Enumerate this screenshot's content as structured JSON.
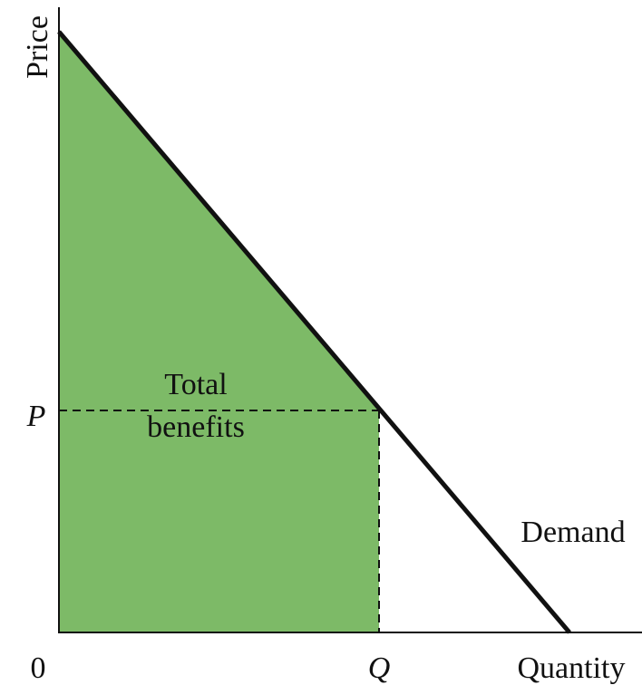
{
  "axes": {
    "y_label": "Price",
    "x_label": "Quantity",
    "origin": "0"
  },
  "points": {
    "price": "P",
    "quantity": "Q"
  },
  "area_label": [
    "Total",
    "benefits"
  ],
  "curve_label": "Demand"
}
